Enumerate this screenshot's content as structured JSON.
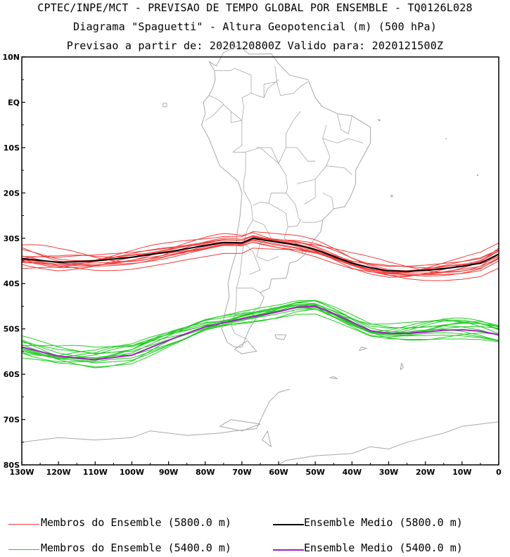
{
  "title": {
    "line1": "CPTEC/INPE/MCT - PREVISAO DE TEMPO GLOBAL POR ENSEMBLE - TQ0126L028",
    "line2": "Diagrama \"Spaguetti\" - Altura Geopotencial (m) (500 hPa)",
    "line3": "Previsao a partir de: 2020120800Z  Valido para: 2020121500Z"
  },
  "chart_data": {
    "type": "line",
    "xlim": [
      -130,
      0
    ],
    "ylim": [
      -80,
      10
    ],
    "x_ticks": [
      {
        "value": -130,
        "label": "130W"
      },
      {
        "value": -120,
        "label": "120W"
      },
      {
        "value": -110,
        "label": "110W"
      },
      {
        "value": -100,
        "label": "100W"
      },
      {
        "value": -90,
        "label": "90W"
      },
      {
        "value": -80,
        "label": "80W"
      },
      {
        "value": -70,
        "label": "70W"
      },
      {
        "value": -60,
        "label": "60W"
      },
      {
        "value": -50,
        "label": "50W"
      },
      {
        "value": -40,
        "label": "40W"
      },
      {
        "value": -30,
        "label": "30W"
      },
      {
        "value": -20,
        "label": "20W"
      },
      {
        "value": -10,
        "label": "10W"
      },
      {
        "value": 0,
        "label": "0"
      }
    ],
    "y_ticks": [
      {
        "value": 10,
        "label": "10N"
      },
      {
        "value": 0,
        "label": "EQ"
      },
      {
        "value": -10,
        "label": "10S"
      },
      {
        "value": -20,
        "label": "20S"
      },
      {
        "value": -30,
        "label": "30S"
      },
      {
        "value": -40,
        "label": "40S"
      },
      {
        "value": -50,
        "label": "50S"
      },
      {
        "value": -60,
        "label": "60S"
      },
      {
        "value": -70,
        "label": "70S"
      },
      {
        "value": -80,
        "label": "80S"
      }
    ],
    "series": [
      {
        "name": "Ensemble Medio (5800.0 m)",
        "color": "#000000",
        "x": [
          -130,
          -120,
          -110,
          -100,
          -90,
          -80,
          -75,
          -70,
          -67,
          -60,
          -55,
          -50,
          -45,
          -40,
          -35,
          -30,
          -25,
          -20,
          -15,
          -10,
          -5,
          0
        ],
        "y": [
          -34.5,
          -35.3,
          -35.0,
          -34.2,
          -33.0,
          -31.6,
          -30.9,
          -31.0,
          -30.0,
          -30.9,
          -31.5,
          -32.5,
          -34.0,
          -35.5,
          -36.5,
          -37.2,
          -37.3,
          -37.1,
          -36.7,
          -36.2,
          -35.5,
          -33.5
        ],
        "spread": 0
      },
      {
        "name": "Ensemble Medio (5400.0 m)",
        "color": "#a020c0",
        "x": [
          -130,
          -120,
          -110,
          -100,
          -90,
          -80,
          -70,
          -60,
          -55,
          -50,
          -45,
          -40,
          -35,
          -30,
          -25,
          -20,
          -15,
          -10,
          -5,
          0
        ],
        "y": [
          -54.0,
          -56.0,
          -56.8,
          -55.8,
          -52.5,
          -49.5,
          -47.8,
          -46.2,
          -45.2,
          -45.0,
          -46.6,
          -48.5,
          -50.4,
          -51.0,
          -51.0,
          -50.7,
          -50.3,
          -50.2,
          -50.5,
          -51.3
        ],
        "spread": 0
      }
    ],
    "members": [
      {
        "name": "Membros do Ensemble (5800.0 m)",
        "color": "#f03c3c",
        "count": 14,
        "base": "Ensemble Medio (5800.0 m)",
        "spread": 2.2
      },
      {
        "name": "Membros do Ensemble (5400.0 m)",
        "color": "#22cc22",
        "count": 14,
        "base": "Ensemble Medio (5400.0 m)",
        "spread": 1.8
      }
    ],
    "map_color": "#a8a8a8"
  },
  "legend": [
    {
      "label": "Membros do Ensemble (5800.0 m)",
      "color": "#f03c3c",
      "weight": 1
    },
    {
      "label": "Ensemble Medio (5800.0 m)",
      "color": "#000000",
      "weight": 2
    },
    {
      "label": "Membros do Ensemble (5400.0 m)",
      "color": "#22cc22",
      "weight": 1
    },
    {
      "label": "Ensemble Medio (5400.0 m)",
      "color": "#a020c0",
      "weight": 2
    }
  ]
}
